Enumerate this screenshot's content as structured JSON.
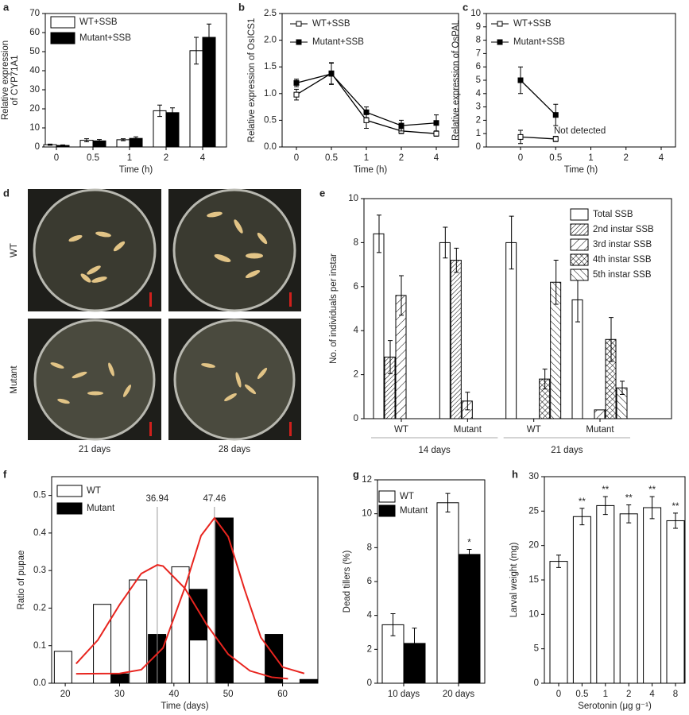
{
  "chart_data": [
    {
      "panel": "a",
      "type": "bar",
      "categories": [
        "0",
        "0.5",
        "1",
        "2",
        "4"
      ],
      "xlabel": "Time (h)",
      "ylabel": [
        "Relative expression",
        "of CYP71A1"
      ],
      "ylim": [
        0,
        70
      ],
      "yticks": [
        0,
        10,
        20,
        30,
        40,
        50,
        60,
        70
      ],
      "legend": "upper left",
      "series": [
        {
          "name": "WT+SSB",
          "color": "#ffffff",
          "values": [
            1.2,
            3.5,
            3.8,
            19,
            50.5
          ],
          "errors": [
            0.3,
            0.8,
            0.5,
            3,
            7
          ]
        },
        {
          "name": "Mutant+SSB",
          "color": "#000000",
          "values": [
            0.8,
            3.2,
            4.5,
            18,
            57.5
          ],
          "errors": [
            0.3,
            0.7,
            0.8,
            2.5,
            7
          ]
        }
      ]
    },
    {
      "panel": "b",
      "type": "line",
      "categories": [
        "0",
        "0.5",
        "1",
        "2",
        "4"
      ],
      "xlabel": "Time (h)",
      "ylabel": "Relative expression of OsICS1",
      "ylim": [
        0,
        2.5
      ],
      "yticks": [
        {
          "value": 0,
          "label": "0.0"
        },
        0.5,
        {
          "value": 1,
          "label": "1.0"
        },
        1.5,
        {
          "value": 2,
          "label": "2.0"
        },
        2.5
      ],
      "legend": "upper left",
      "series": [
        {
          "name": "WT+SSB",
          "color": "#000000",
          "marker": "open-square",
          "values": [
            0.98,
            1.38,
            0.5,
            0.3,
            0.25
          ],
          "errors": [
            0.1,
            0.2,
            0.15,
            0.05,
            0.05
          ]
        },
        {
          "name": "Mutant+SSB",
          "color": "#000000",
          "marker": "filled-square",
          "values": [
            1.2,
            1.37,
            0.65,
            0.4,
            0.45
          ],
          "errors": [
            0.07,
            0.2,
            0.1,
            0.1,
            0.15
          ]
        }
      ]
    },
    {
      "panel": "c",
      "type": "line",
      "categories": [
        "0",
        "0.5",
        "1",
        "2",
        "4"
      ],
      "xlabel": "Time (h)",
      "ylabel": "Relative expression of OsPAL",
      "ylim": [
        0,
        10
      ],
      "yticks": [
        0,
        1,
        2,
        3,
        4,
        5,
        6,
        7,
        8,
        9,
        10
      ],
      "legend": "upper left",
      "annotation": "Not detected",
      "series": [
        {
          "name": "WT+SSB",
          "color": "#000000",
          "marker": "open-square",
          "values": [
            0.75,
            0.6,
            null,
            null,
            null
          ],
          "errors": [
            0.5,
            0.2,
            null,
            null,
            null
          ]
        },
        {
          "name": "Mutant+SSB",
          "color": "#000000",
          "marker": "filled-square",
          "values": [
            5,
            2.4,
            null,
            null,
            null
          ],
          "errors": [
            1,
            0.8,
            null,
            null,
            null
          ]
        }
      ]
    },
    {
      "panel": "e",
      "type": "bar",
      "categories": [
        "WT",
        "Mutant",
        "WT",
        "Mutant"
      ],
      "group_labels": [
        "14 days",
        "21 days"
      ],
      "ylabel": "No. of individuals per instar",
      "ylim": [
        0,
        10
      ],
      "yticks": [
        0,
        2,
        4,
        6,
        8,
        10
      ],
      "legend": "upper right",
      "series": [
        {
          "name": "Total SSB",
          "color": "#ffffff",
          "pattern": "none",
          "values": [
            8.4,
            8.0,
            8.0,
            5.4
          ],
          "errors": [
            0.85,
            0.7,
            1.2,
            1.0
          ]
        },
        {
          "name": "2nd instar SSB",
          "color": "#ffffff",
          "pattern": "dense-diagonal",
          "values": [
            2.8,
            7.2,
            null,
            null
          ],
          "errors": [
            0.75,
            0.55,
            null,
            null
          ]
        },
        {
          "name": "3rd instar SSB",
          "color": "#ffffff",
          "pattern": "wide-diagonal",
          "values": [
            5.6,
            0.8,
            null,
            0.4
          ],
          "errors": [
            0.9,
            0.4,
            null,
            null
          ]
        },
        {
          "name": "4th instar SSB",
          "color": "#ffffff",
          "pattern": "crosshatch",
          "values": [
            null,
            null,
            1.8,
            3.6
          ],
          "errors": [
            null,
            null,
            0.45,
            1.0
          ]
        },
        {
          "name": "5th instar SSB",
          "color": "#ffffff",
          "pattern": "back-diagonal",
          "values": [
            null,
            null,
            6.2,
            1.4
          ],
          "errors": [
            null,
            null,
            1.0,
            0.3
          ]
        }
      ]
    },
    {
      "panel": "f",
      "type": "histogram",
      "xlabel": "Time (days)",
      "ylabel": "Ratio of pupae",
      "xlim": [
        17.5,
        66.5
      ],
      "xticks": [
        20,
        30,
        40,
        50,
        60
      ],
      "ylim": [
        0,
        0.55
      ],
      "yticks": [
        {
          "value": 0,
          "label": "0.0"
        },
        0.1,
        0.2,
        0.3,
        0.4,
        0.5
      ],
      "legend": "upper left",
      "series": [
        {
          "name": "WT",
          "color": "#ffffff",
          "x": [
            19.6,
            26.8,
            33.4,
            41.2,
            44.5
          ],
          "values": [
            0.085,
            0.21,
            0.275,
            0.31,
            0.115
          ]
        },
        {
          "name": "Mutant",
          "color": "#000000",
          "x": [
            30,
            36.9,
            44.5,
            49.3,
            58.4,
            64.8
          ],
          "values": [
            0.025,
            0.13,
            0.25,
            0.44,
            0.13,
            0.01
          ]
        }
      ],
      "fits": [
        {
          "color": "#e8251f",
          "x": [
            22,
            26,
            30,
            34,
            36.94,
            38,
            42,
            46,
            50,
            54,
            58,
            61
          ],
          "values": [
            0.052,
            0.115,
            0.209,
            0.292,
            0.315,
            0.312,
            0.253,
            0.157,
            0.077,
            0.033,
            0.016,
            0.012
          ]
        },
        {
          "color": "#e8251f",
          "x": [
            22,
            30,
            34,
            38,
            42,
            45,
            47.46,
            50,
            53,
            56,
            60,
            64
          ],
          "values": [
            0.025,
            0.026,
            0.036,
            0.094,
            0.254,
            0.393,
            0.44,
            0.39,
            0.25,
            0.122,
            0.043,
            0.026
          ]
        }
      ],
      "vlines": [
        36.94,
        47.46
      ]
    },
    {
      "panel": "g",
      "type": "bar",
      "categories": [
        "10 days",
        "20 days"
      ],
      "ylabel": "Dead tillers (%)",
      "ylim": [
        0,
        12
      ],
      "yticks": [
        0,
        2,
        4,
        6,
        8,
        10,
        12
      ],
      "legend": "upper left",
      "series": [
        {
          "name": "WT",
          "color": "#ffffff",
          "values": [
            3.45,
            10.65
          ],
          "errors": [
            0.65,
            0.55
          ]
        },
        {
          "name": "Mutant",
          "color": "#000000",
          "values": [
            2.35,
            7.6
          ],
          "errors": [
            0.9,
            0.3
          ],
          "significance": [
            null,
            "*"
          ]
        }
      ]
    },
    {
      "panel": "h",
      "type": "bar",
      "categories": [
        "0",
        "0.5",
        "1",
        "2",
        "4",
        "8"
      ],
      "xlabel": "Serotonin (μg g⁻¹)",
      "ylabel": "Larval weight (mg)",
      "ylim": [
        0,
        30
      ],
      "yticks": [
        0,
        5,
        10,
        15,
        20,
        25,
        30
      ],
      "series": [
        {
          "color": "#ffffff",
          "values": [
            17.7,
            24.2,
            25.8,
            24.6,
            25.5,
            23.6
          ],
          "errors": [
            0.9,
            1.2,
            1.3,
            1.3,
            1.6,
            1.1
          ],
          "significance": [
            null,
            "**",
            "**",
            "**",
            "**",
            "**"
          ]
        }
      ]
    }
  ],
  "photo_panel": {
    "panel": "d",
    "rows": [
      "WT",
      "Mutant"
    ],
    "columns": [
      "21 days",
      "28 days"
    ]
  }
}
